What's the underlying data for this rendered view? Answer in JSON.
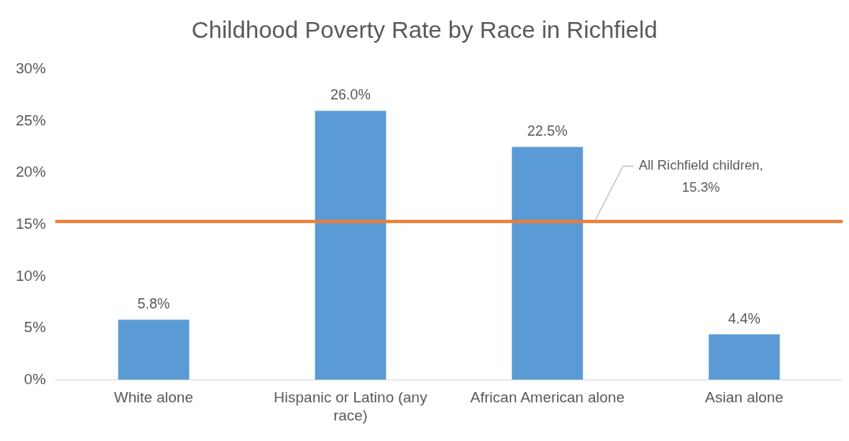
{
  "chart_data": {
    "type": "bar",
    "title": "Childhood Poverty Rate by Race in Richfield",
    "categories": [
      "White alone",
      "Hispanic or Latino (any race)",
      "African American alone",
      "Asian alone"
    ],
    "values": [
      5.8,
      26.0,
      22.5,
      4.4
    ],
    "value_labels": [
      "5.8%",
      "26.0%",
      "22.5%",
      "4.4%"
    ],
    "color": "#5b9bd5",
    "ylim": [
      0,
      30
    ],
    "yticks": [
      {
        "value": 0,
        "label": "0%"
      },
      {
        "value": 5,
        "label": "5%"
      },
      {
        "value": 10,
        "label": "10%"
      },
      {
        "value": 15,
        "label": "15%"
      },
      {
        "value": 20,
        "label": "20%"
      },
      {
        "value": 25,
        "label": "25%"
      },
      {
        "value": 30,
        "label": "30%"
      }
    ],
    "ref_lines": [
      {
        "axis": "y",
        "value": 15.3,
        "label": "All Richfield children, 15.3%",
        "color": "#ed7d31"
      }
    ],
    "grid": false,
    "legend": false
  }
}
